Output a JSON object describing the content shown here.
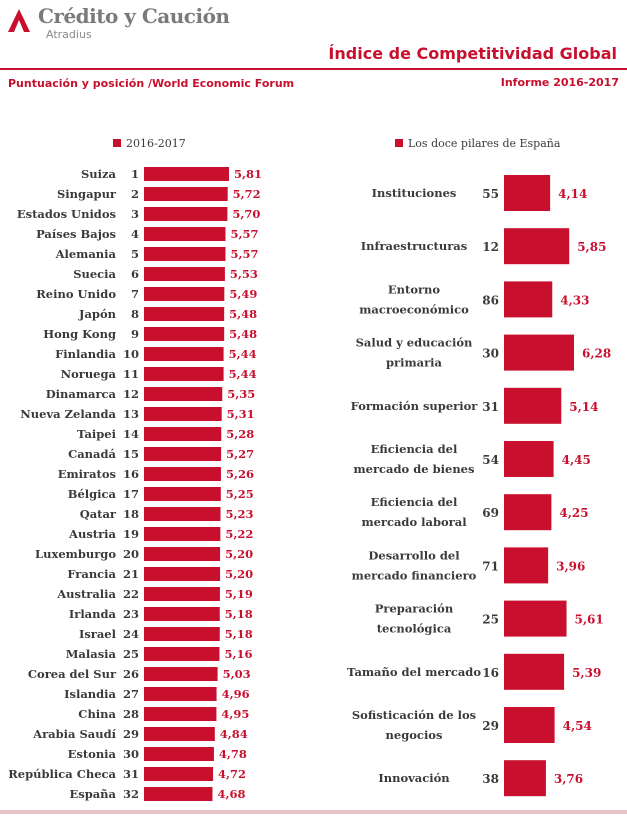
{
  "header": {
    "logo_title": "Crédito y Caución",
    "logo_sub": "Atradius",
    "main_title": "Índice de Competitividad Global",
    "subtitle_left": "Puntuación y posición /World Economic Forum",
    "subtitle_right": "Informe 2016-2017"
  },
  "colors": {
    "accent": "#c8102e",
    "text": "#3a3a3a"
  },
  "chart_data": [
    {
      "type": "bar",
      "orientation": "horizontal",
      "legend": "2016-2017",
      "legend_position": "top",
      "grid": false,
      "xlim": [
        0,
        6.3
      ],
      "categories": [
        "Suiza",
        "Singapur",
        "Estados Unidos",
        "Países Bajos",
        "Alemania",
        "Suecia",
        "Reino Unido",
        "Japón",
        "Hong Kong",
        "Finlandia",
        "Noruega",
        "Dinamarca",
        "Nueva Zelanda",
        "Taipei",
        "Canadá",
        "Emiratos",
        "Bélgica",
        "Qatar",
        "Austria",
        "Luxemburgo",
        "Francia",
        "Australia",
        "Irlanda",
        "Israel",
        "Malasia",
        "Corea del Sur",
        "Islandia",
        "China",
        "Arabia Saudí",
        "Estonia",
        "República Checa",
        "España"
      ],
      "ranks": [
        "1",
        "2",
        "3",
        "4",
        "5",
        "6",
        "7",
        "8",
        "9",
        "10",
        "11",
        "12",
        "13",
        "14",
        "15",
        "16",
        "17",
        "18",
        "19",
        "20",
        "21",
        "22",
        "23",
        "24",
        "25",
        "26",
        "27",
        "28",
        "29",
        "30",
        "31",
        "32"
      ],
      "values": [
        5.81,
        5.72,
        5.7,
        5.57,
        5.57,
        5.53,
        5.49,
        5.48,
        5.48,
        5.44,
        5.44,
        5.35,
        5.31,
        5.28,
        5.27,
        5.26,
        5.25,
        5.23,
        5.22,
        5.2,
        5.2,
        5.19,
        5.18,
        5.18,
        5.16,
        5.03,
        4.96,
        4.95,
        4.84,
        4.78,
        4.72,
        4.68
      ],
      "value_labels": [
        "5,81",
        "5,72",
        "5,70",
        "5,57",
        "5,57",
        "5,53",
        "5,49",
        "5,48",
        "5,48",
        "5,44",
        "5,44",
        "5,35",
        "5,31",
        "5,28",
        "5,27",
        "5,26",
        "5,25",
        "5,23",
        "5,22",
        "5,20",
        "5,20",
        "5,19",
        "5,18",
        "5,18",
        "5,16",
        "5,03",
        "4,96",
        "4,95",
        "4,84",
        "4,78",
        "4,72",
        "4,68"
      ]
    },
    {
      "type": "bar",
      "orientation": "horizontal",
      "legend": "Los doce pilares de España",
      "legend_position": "top",
      "grid": false,
      "xlim": [
        0,
        6.3
      ],
      "categories": [
        [
          "Instituciones"
        ],
        [
          "Infraestructuras"
        ],
        [
          "Entorno",
          "macroeconómico"
        ],
        [
          "Salud y educación",
          "primaria"
        ],
        [
          "Formación superior"
        ],
        [
          "Eficiencia del",
          "mercado de bienes"
        ],
        [
          "Eficiencia del",
          "mercado laboral"
        ],
        [
          "Desarrollo del",
          "mercado financiero"
        ],
        [
          "Preparación",
          "tecnológica"
        ],
        [
          "Tamaño del mercado"
        ],
        [
          "Sofisticación de los",
          "negocios"
        ],
        [
          "Innovación"
        ]
      ],
      "ranks": [
        "55",
        "12",
        "86",
        "30",
        "31",
        "54",
        "69",
        "71",
        "25",
        "16",
        "29",
        "38"
      ],
      "values": [
        4.14,
        5.85,
        4.33,
        6.28,
        5.14,
        4.45,
        4.25,
        3.96,
        5.61,
        5.39,
        4.54,
        3.76
      ],
      "value_labels": [
        "4,14",
        "5,85",
        "4,33",
        "6,28",
        "5,14",
        "4,45",
        "4,25",
        "3,96",
        "5,61",
        "5,39",
        "4,54",
        "3,76"
      ]
    }
  ]
}
